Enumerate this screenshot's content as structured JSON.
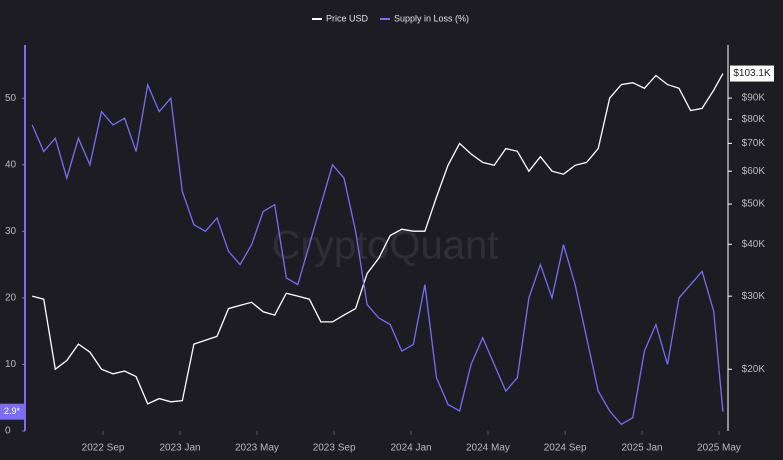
{
  "chart_data": {
    "type": "line",
    "legend_position": "top",
    "watermark": "CryptoQuant",
    "x": [
      2022.36,
      2022.41,
      2022.46,
      2022.51,
      2022.56,
      2022.61,
      2022.66,
      2022.71,
      2022.76,
      2022.81,
      2022.86,
      2022.91,
      2022.96,
      2023.01,
      2023.06,
      2023.11,
      2023.16,
      2023.21,
      2023.26,
      2023.31,
      2023.36,
      2023.41,
      2023.46,
      2023.51,
      2023.56,
      2023.61,
      2023.66,
      2023.71,
      2023.76,
      2023.81,
      2023.86,
      2023.91,
      2023.96,
      2024.01,
      2024.06,
      2024.11,
      2024.16,
      2024.21,
      2024.26,
      2024.31,
      2024.36,
      2024.41,
      2024.46,
      2024.51,
      2024.56,
      2024.61,
      2024.66,
      2024.71,
      2024.76,
      2024.81,
      2024.86,
      2024.91,
      2024.96,
      2025.01,
      2025.06,
      2025.11,
      2025.16,
      2025.21,
      2025.26,
      2025.31,
      2025.35
    ],
    "xlim": [
      2022.329,
      2025.372
    ],
    "xticks": [
      {
        "value": 2022.667,
        "label": "2022 Sep"
      },
      {
        "value": 2023.0,
        "label": "2023 Jan"
      },
      {
        "value": 2023.333,
        "label": "2023 May"
      },
      {
        "value": 2023.667,
        "label": "2023 Sep"
      },
      {
        "value": 2024.0,
        "label": "2024 Jan"
      },
      {
        "value": 2024.333,
        "label": "2024 May"
      },
      {
        "value": 2024.667,
        "label": "2024 Sep"
      },
      {
        "value": 2025.0,
        "label": "2025 Jan"
      },
      {
        "value": 2025.333,
        "label": "2025 May"
      }
    ],
    "ylim": [
      0,
      58
    ],
    "yticks": [
      0,
      10,
      20,
      30,
      40,
      50
    ],
    "y2lim": [
      14200,
      120800
    ],
    "y2log": true,
    "y2ticks": [
      {
        "value": 20000,
        "label": "$20K"
      },
      {
        "value": 30000,
        "label": "$30K"
      },
      {
        "value": 40000,
        "label": "$40K"
      },
      {
        "value": 50000,
        "label": "$50K"
      },
      {
        "value": 60000,
        "label": "$60K"
      },
      {
        "value": 70000,
        "label": "$70K"
      },
      {
        "value": 80000,
        "label": "$80K"
      },
      {
        "value": 90000,
        "label": "$90K"
      }
    ],
    "series": [
      {
        "name": "Price USD",
        "color": "#ffffff",
        "axis": "y2",
        "values": [
          30000,
          29500,
          20000,
          21000,
          23000,
          22000,
          20000,
          19500,
          19800,
          19200,
          16500,
          17000,
          16700,
          16800,
          23000,
          23500,
          24000,
          28000,
          28500,
          29000,
          27500,
          27000,
          30500,
          30000,
          29500,
          26000,
          26000,
          27000,
          28000,
          34000,
          37000,
          42000,
          43500,
          43000,
          43000,
          52000,
          62000,
          70000,
          66000,
          63000,
          62000,
          68000,
          67000,
          60000,
          65000,
          60000,
          59000,
          62000,
          63000,
          68000,
          90000,
          97000,
          98000,
          95000,
          102000,
          97000,
          95000,
          84000,
          85000,
          94000,
          103100
        ],
        "value_labels": [
          null,
          null,
          null,
          null,
          null,
          null,
          null,
          null,
          null,
          null,
          null,
          null,
          null,
          null,
          null,
          null,
          null,
          null,
          null,
          null,
          null,
          null,
          null,
          null,
          null,
          null,
          null,
          null,
          null,
          null,
          null,
          null,
          null,
          null,
          null,
          null,
          null,
          null,
          null,
          null,
          null,
          null,
          null,
          null,
          null,
          null,
          null,
          null,
          null,
          null,
          null,
          null,
          null,
          null,
          null,
          null,
          null,
          null,
          null,
          null,
          "$103.1K"
        ]
      },
      {
        "name": "Supply in Loss (%)",
        "color": "#7b6cf0",
        "values": [
          46,
          42,
          44,
          38,
          44,
          40,
          48,
          46,
          47,
          42,
          52,
          48,
          50,
          36,
          31,
          30,
          32,
          27,
          25,
          28,
          33,
          34,
          23,
          22,
          28,
          34,
          40,
          38,
          30,
          19,
          17,
          16,
          12,
          13,
          22,
          8,
          4,
          3,
          10,
          14,
          10,
          6,
          8,
          20,
          25,
          20,
          28,
          22,
          14,
          6,
          3,
          1,
          2,
          12,
          16,
          10,
          20,
          22,
          24,
          18,
          2.9
        ],
        "value_labels": [
          null,
          null,
          null,
          null,
          null,
          null,
          null,
          null,
          null,
          null,
          null,
          null,
          null,
          null,
          null,
          null,
          null,
          null,
          null,
          null,
          null,
          null,
          null,
          null,
          null,
          null,
          null,
          null,
          null,
          null,
          null,
          null,
          null,
          null,
          null,
          null,
          null,
          null,
          null,
          null,
          null,
          null,
          null,
          null,
          null,
          null,
          null,
          null,
          null,
          null,
          null,
          null,
          null,
          null,
          null,
          null,
          null,
          null,
          null,
          null,
          "2.9*"
        ]
      }
    ]
  }
}
